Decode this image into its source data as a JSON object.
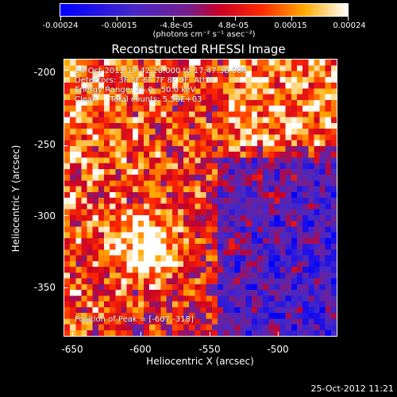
{
  "colorbar": {
    "ticks": [
      "-0.00024",
      "-0.00015",
      "-4.8e-05",
      "4.8e-05",
      "0.00015",
      "0.00024"
    ],
    "units": "(photons cm⁻² s⁻¹ asec⁻²)"
  },
  "title": "Reconstructed RHESSI Image",
  "info": {
    "line1": "24-Oct-2012 17:42:20.000 to 17:47:38.000",
    "line2": "Detectors: 3F 5F 6F 7F 8F 9F, Att 0",
    "line3": "Energy Range: 25.0 - 50.0 keV",
    "line4": "Clean     Total counts: 5.58E+03",
    "peak": "Position of Peak = [-607,-318]"
  },
  "axes": {
    "xlabel": "Heliocentric X (arcsec)",
    "ylabel": "Heliocentric Y (arcsec)",
    "xticks": [
      "-650",
      "-600",
      "-550",
      "-500"
    ],
    "yticks": [
      "-200",
      "-250",
      "-300",
      "-350"
    ]
  },
  "timestamp": "25-Oct-2012 11:21",
  "chart_data": {
    "type": "heatmap",
    "title": "Reconstructed RHESSI Image",
    "xlabel": "Heliocentric X (arcsec)",
    "ylabel": "Heliocentric Y (arcsec)",
    "x_range": [
      -666,
      -465
    ],
    "y_range": [
      -385,
      -184
    ],
    "value_range": [
      -0.00024,
      0.00024
    ],
    "colormap": "blue-purple-red-yellow-white",
    "peak_position": [
      -607,
      -318
    ]
  }
}
